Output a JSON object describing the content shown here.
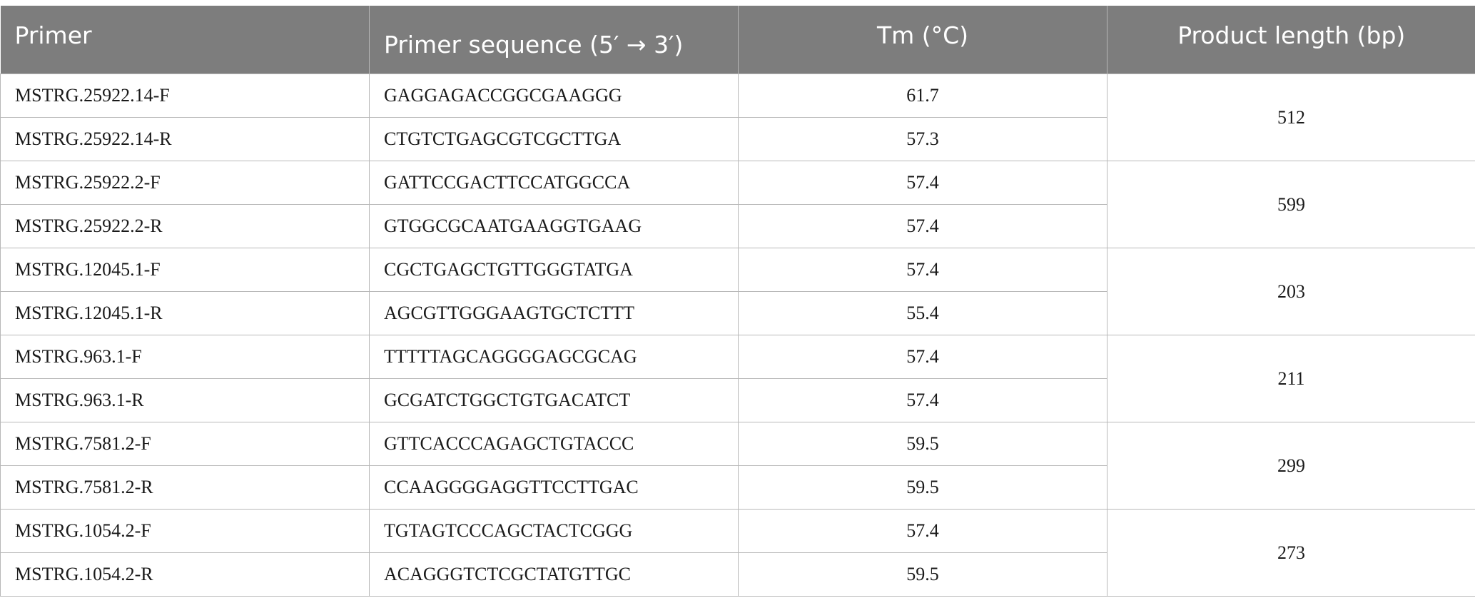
{
  "table": {
    "headers": [
      "Primer",
      "Primer sequence (5′ → 3′)",
      "Tm (°C)",
      "Product length (bp)"
    ],
    "pairs": [
      {
        "product_length": "512",
        "rows": [
          {
            "primer": "MSTRG.25922.14-F",
            "sequence": "GAGGAGACCGGCGAAGGG",
            "tm": "61.7"
          },
          {
            "primer": "MSTRG.25922.14-R",
            "sequence": "CTGTCTGAGCGTCGCTTGA",
            "tm": "57.3"
          }
        ]
      },
      {
        "product_length": "599",
        "rows": [
          {
            "primer": "MSTRG.25922.2-F",
            "sequence": "GATTCCGACTTCCATGGCCA",
            "tm": "57.4"
          },
          {
            "primer": "MSTRG.25922.2-R",
            "sequence": "GTGGCGCAATGAAGGTGAAG",
            "tm": "57.4"
          }
        ]
      },
      {
        "product_length": "203",
        "rows": [
          {
            "primer": "MSTRG.12045.1-F",
            "sequence": "CGCTGAGCTGTTGGGTATGA",
            "tm": "57.4"
          },
          {
            "primer": "MSTRG.12045.1-R",
            "sequence": "AGCGTTGGGAAGTGCTCTTT",
            "tm": "55.4"
          }
        ]
      },
      {
        "product_length": "211",
        "rows": [
          {
            "primer": "MSTRG.963.1-F",
            "sequence": "TTTTTAGCAGGGGAGCGCAG",
            "tm": "57.4"
          },
          {
            "primer": "MSTRG.963.1-R",
            "sequence": "GCGATCTGGCTGTGACATCT",
            "tm": "57.4"
          }
        ]
      },
      {
        "product_length": "299",
        "rows": [
          {
            "primer": "MSTRG.7581.2-F",
            "sequence": "GTTCACCCAGAGCTGTACCC",
            "tm": "59.5"
          },
          {
            "primer": "MSTRG.7581.2-R",
            "sequence": "CCAAGGGGAGGTTCCTTGAC",
            "tm": "59.5"
          }
        ]
      },
      {
        "product_length": "273",
        "rows": [
          {
            "primer": "MSTRG.1054.2-F",
            "sequence": "TGTAGTCCCAGCTACTCGGG",
            "tm": "57.4"
          },
          {
            "primer": "MSTRG.1054.2-R",
            "sequence": "ACAGGGTCTCGCTATGTTGC",
            "tm": "59.5"
          }
        ]
      }
    ]
  }
}
